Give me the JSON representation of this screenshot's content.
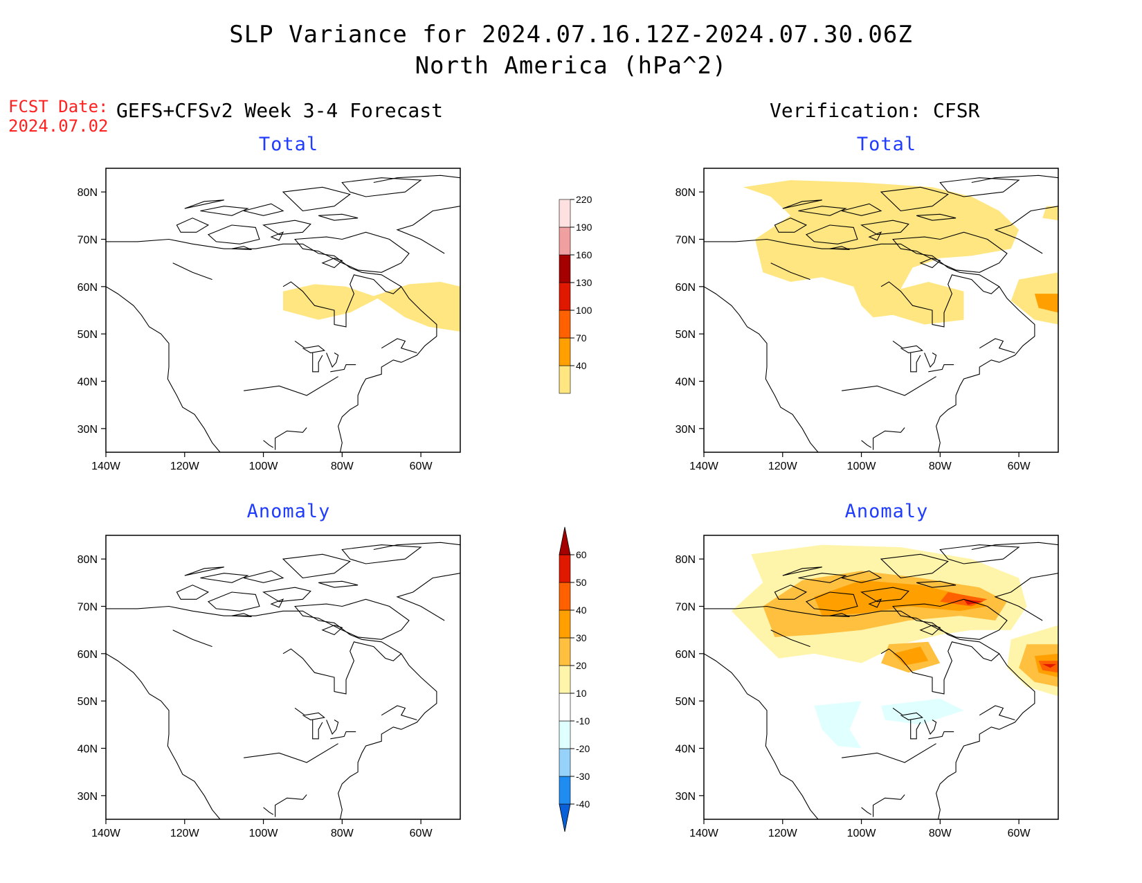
{
  "header": {
    "title_line1": "SLP Variance for 2024.07.16.12Z-2024.07.30.06Z",
    "title_line2": "North America (hPa^2)",
    "fcst_label": "FCST Date:",
    "fcst_date": "2024.07.02",
    "model_label": "GEFS+CFSv2 Week 3-4 Forecast",
    "verification_label": "Verification: CFSR"
  },
  "panels": {
    "forecast_total": {
      "title": "Total"
    },
    "verif_total": {
      "title": "Total"
    },
    "forecast_anomaly": {
      "title": "Anomaly"
    },
    "verif_anomaly": {
      "title": "Anomaly"
    }
  },
  "axes": {
    "lon_labels": [
      "140W",
      "120W",
      "100W",
      "80W",
      "60W"
    ],
    "lat_labels": [
      "80N",
      "70N",
      "60N",
      "50N",
      "40N",
      "30N"
    ],
    "lon_range": [
      -140,
      -50
    ],
    "lat_range": [
      25,
      85
    ]
  },
  "total_colorbar": {
    "levels": [
      "40",
      "70",
      "100",
      "130",
      "160",
      "190",
      "220"
    ],
    "colors": [
      "#ffe680",
      "#ffa000",
      "#ff6000",
      "#e01800",
      "#a50000",
      "#f0a0a0",
      "#fde0e0"
    ]
  },
  "anomaly_colorbar": {
    "levels": [
      "-40",
      "-30",
      "-20",
      "-10",
      "10",
      "20",
      "30",
      "40",
      "50",
      "60"
    ],
    "colors": [
      "#0a60d8",
      "#1e8cf0",
      "#96d2fa",
      "#e0ffff",
      "#ffffff",
      "#fff5aa",
      "#ffc040",
      "#ffa000",
      "#ff6000",
      "#e01800",
      "#a50000"
    ]
  }
}
